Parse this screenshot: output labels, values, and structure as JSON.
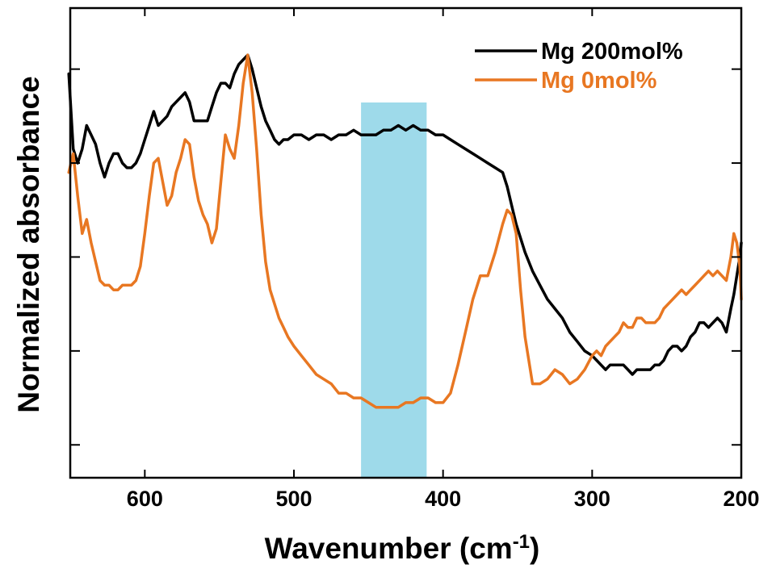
{
  "chart_data": {
    "type": "line",
    "xlabel": "Wavenumber (cm",
    "xlabel_sup": "-1",
    "xlabel_end": ")",
    "ylabel": "Normalized absorbance",
    "xlim": [
      650,
      200
    ],
    "ylim": [
      0,
      1.0
    ],
    "x_ticks": [
      600,
      500,
      400,
      300,
      200
    ],
    "x_tick_labels": [
      "600",
      "500",
      "400",
      "300",
      "200"
    ],
    "y_ticks": [
      0.07,
      0.27,
      0.47,
      0.67,
      0.87,
      1.0
    ],
    "grid": false,
    "legend_position": "top-right",
    "highlight_band": {
      "from": 455,
      "to": 411,
      "color": "#8dd3e6"
    },
    "series": [
      {
        "name": "Mg 200mol%",
        "color": "#000000",
        "x": [
          651,
          648,
          645,
          642,
          639,
          636,
          633,
          630,
          627,
          624,
          621,
          618,
          615,
          612,
          609,
          606,
          603,
          600,
          597,
          594,
          591,
          588,
          585,
          582,
          579,
          576,
          573,
          570,
          567,
          564,
          561,
          558,
          555,
          552,
          549,
          546,
          543,
          540,
          537,
          534,
          531,
          528,
          525,
          522,
          519,
          516,
          513,
          510,
          507,
          504,
          500,
          495,
          490,
          485,
          480,
          475,
          470,
          465,
          460,
          455,
          450,
          445,
          440,
          435,
          430,
          425,
          420,
          415,
          410,
          405,
          400,
          395,
          390,
          385,
          380,
          375,
          370,
          365,
          360,
          357,
          354,
          351,
          348,
          345,
          340,
          335,
          330,
          325,
          320,
          315,
          310,
          305,
          300,
          297,
          294,
          291,
          288,
          285,
          282,
          279,
          276,
          273,
          270,
          267,
          264,
          261,
          258,
          255,
          252,
          249,
          246,
          243,
          240,
          237,
          234,
          231,
          228,
          225,
          222,
          219,
          216,
          213,
          210,
          207,
          205,
          203,
          201,
          200
        ],
        "y": [
          0.86,
          0.7,
          0.67,
          0.7,
          0.75,
          0.73,
          0.71,
          0.67,
          0.64,
          0.67,
          0.69,
          0.69,
          0.67,
          0.66,
          0.66,
          0.67,
          0.69,
          0.72,
          0.75,
          0.78,
          0.75,
          0.76,
          0.77,
          0.79,
          0.8,
          0.81,
          0.82,
          0.8,
          0.76,
          0.76,
          0.76,
          0.76,
          0.79,
          0.82,
          0.84,
          0.84,
          0.83,
          0.86,
          0.88,
          0.89,
          0.9,
          0.87,
          0.83,
          0.79,
          0.76,
          0.74,
          0.72,
          0.71,
          0.72,
          0.72,
          0.73,
          0.73,
          0.72,
          0.73,
          0.73,
          0.72,
          0.73,
          0.73,
          0.74,
          0.73,
          0.73,
          0.73,
          0.74,
          0.74,
          0.75,
          0.74,
          0.75,
          0.74,
          0.74,
          0.73,
          0.73,
          0.72,
          0.71,
          0.7,
          0.69,
          0.68,
          0.67,
          0.66,
          0.65,
          0.62,
          0.58,
          0.54,
          0.51,
          0.48,
          0.44,
          0.41,
          0.38,
          0.36,
          0.34,
          0.31,
          0.29,
          0.27,
          0.26,
          0.25,
          0.24,
          0.23,
          0.24,
          0.24,
          0.24,
          0.24,
          0.23,
          0.22,
          0.23,
          0.23,
          0.23,
          0.23,
          0.24,
          0.24,
          0.25,
          0.27,
          0.28,
          0.28,
          0.27,
          0.28,
          0.3,
          0.31,
          0.33,
          0.33,
          0.32,
          0.33,
          0.34,
          0.33,
          0.31,
          0.36,
          0.39,
          0.43,
          0.47,
          0.5
        ]
      },
      {
        "name": "Mg 0mol%",
        "color": "#e87722",
        "x": [
          651,
          648,
          645,
          642,
          639,
          636,
          633,
          630,
          627,
          624,
          621,
          618,
          615,
          612,
          609,
          606,
          603,
          600,
          597,
          594,
          591,
          588,
          585,
          582,
          579,
          576,
          573,
          570,
          567,
          564,
          561,
          558,
          555,
          552,
          549,
          546,
          543,
          540,
          537,
          534,
          531,
          528,
          525,
          522,
          519,
          516,
          513,
          510,
          507,
          504,
          500,
          495,
          490,
          485,
          480,
          475,
          470,
          465,
          460,
          455,
          450,
          445,
          440,
          435,
          430,
          425,
          420,
          415,
          410,
          405,
          400,
          395,
          390,
          385,
          380,
          375,
          370,
          365,
          360,
          357,
          354,
          351,
          348,
          345,
          340,
          335,
          330,
          325,
          320,
          315,
          310,
          305,
          300,
          297,
          294,
          291,
          288,
          285,
          282,
          279,
          276,
          273,
          270,
          267,
          264,
          261,
          258,
          255,
          252,
          249,
          246,
          243,
          240,
          237,
          234,
          231,
          228,
          225,
          222,
          219,
          216,
          213,
          210,
          207,
          205,
          203,
          201,
          200
        ],
        "y": [
          0.65,
          0.69,
          0.6,
          0.52,
          0.55,
          0.5,
          0.46,
          0.42,
          0.41,
          0.41,
          0.4,
          0.4,
          0.41,
          0.41,
          0.41,
          0.42,
          0.45,
          0.52,
          0.6,
          0.67,
          0.68,
          0.63,
          0.58,
          0.6,
          0.65,
          0.68,
          0.72,
          0.71,
          0.64,
          0.59,
          0.56,
          0.54,
          0.5,
          0.53,
          0.63,
          0.73,
          0.7,
          0.68,
          0.75,
          0.84,
          0.9,
          0.82,
          0.7,
          0.56,
          0.46,
          0.4,
          0.37,
          0.34,
          0.32,
          0.3,
          0.28,
          0.26,
          0.24,
          0.22,
          0.21,
          0.2,
          0.18,
          0.18,
          0.17,
          0.17,
          0.16,
          0.15,
          0.15,
          0.15,
          0.15,
          0.16,
          0.16,
          0.17,
          0.17,
          0.16,
          0.16,
          0.18,
          0.24,
          0.31,
          0.38,
          0.43,
          0.43,
          0.48,
          0.54,
          0.57,
          0.56,
          0.52,
          0.4,
          0.3,
          0.2,
          0.2,
          0.21,
          0.23,
          0.22,
          0.2,
          0.21,
          0.23,
          0.26,
          0.27,
          0.26,
          0.28,
          0.29,
          0.3,
          0.31,
          0.33,
          0.32,
          0.32,
          0.34,
          0.34,
          0.33,
          0.33,
          0.33,
          0.34,
          0.36,
          0.37,
          0.38,
          0.39,
          0.4,
          0.39,
          0.4,
          0.41,
          0.42,
          0.43,
          0.44,
          0.43,
          0.44,
          0.43,
          0.42,
          0.47,
          0.52,
          0.5,
          0.45,
          0.38
        ]
      }
    ]
  }
}
